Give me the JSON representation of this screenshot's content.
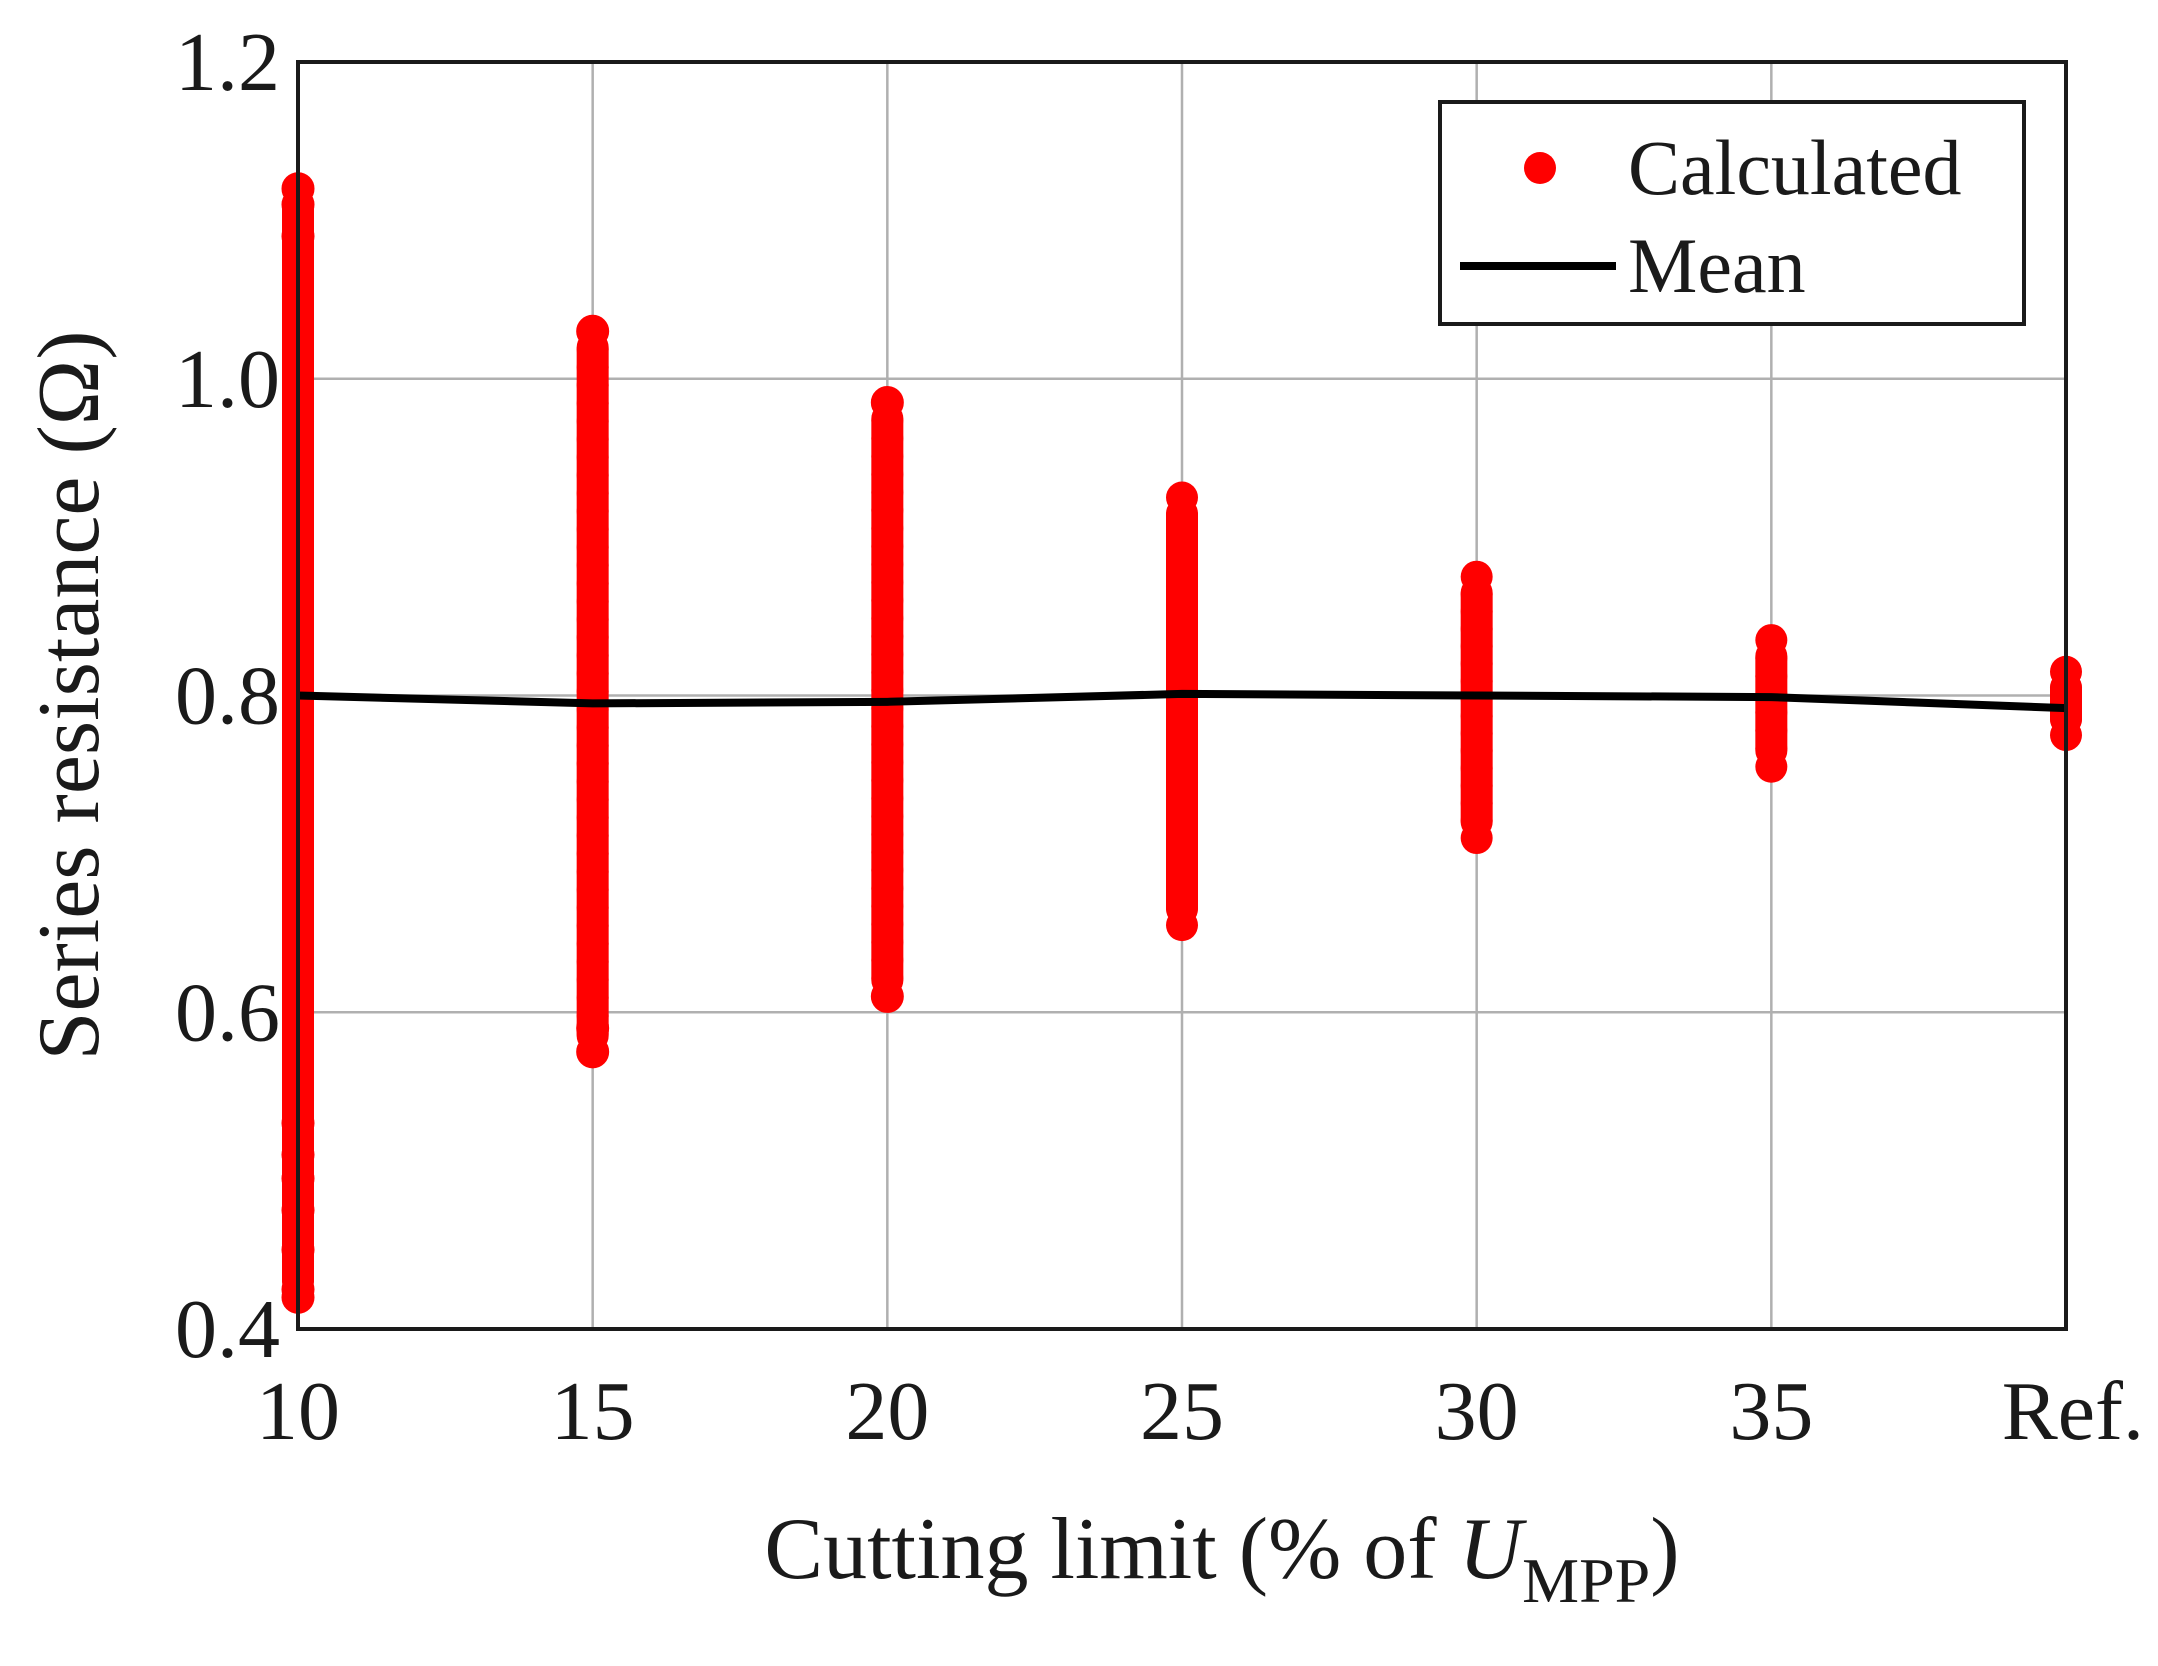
{
  "chart_data": {
    "type": "scatter",
    "xlabel_main": "Cutting limit (% of ",
    "xlabel_var": "U",
    "xlabel_sub": "MPP",
    "xlabel_close": ")",
    "ylabel": "Series resistance (Ω)",
    "ylim": [
      0.4,
      1.2
    ],
    "yticks": [
      "0.4",
      "0.6",
      "0.8",
      "1.0",
      "1.2"
    ],
    "ytick_values": [
      0.4,
      0.6,
      0.8,
      1.0,
      1.2
    ],
    "categories": [
      "10",
      "15",
      "20",
      "25",
      "30",
      "35",
      "Ref."
    ],
    "grid": true,
    "legend_position": "top-right",
    "colors": {
      "calculated": "#ff0000",
      "mean": "#000000",
      "grid": "#b0b0b0"
    },
    "series": [
      {
        "name": "Calculated",
        "kind": "scatter",
        "ranges": [
          {
            "category": "10",
            "min": 0.42,
            "max": 1.12
          },
          {
            "category": "15",
            "min": 0.575,
            "max": 1.03
          },
          {
            "category": "20",
            "min": 0.61,
            "max": 0.985
          },
          {
            "category": "25",
            "min": 0.655,
            "max": 0.925
          },
          {
            "category": "30",
            "min": 0.71,
            "max": 0.875
          },
          {
            "category": "35",
            "min": 0.755,
            "max": 0.835
          },
          {
            "category": "Ref.",
            "min": 0.775,
            "max": 0.815
          }
        ],
        "outliers": [
          {
            "category": "10",
            "y": 0.42
          },
          {
            "category": "10",
            "y": 0.425
          },
          {
            "category": "10",
            "y": 0.45
          },
          {
            "category": "10",
            "y": 0.475
          },
          {
            "category": "10",
            "y": 0.495
          },
          {
            "category": "10",
            "y": 0.51
          },
          {
            "category": "10",
            "y": 0.53
          },
          {
            "category": "10",
            "y": 1.09
          },
          {
            "category": "10",
            "y": 1.11
          },
          {
            "category": "10",
            "y": 1.12
          },
          {
            "category": "15",
            "y": 0.575
          },
          {
            "category": "15",
            "y": 0.59
          },
          {
            "category": "15",
            "y": 1.03
          },
          {
            "category": "20",
            "y": 0.61
          },
          {
            "category": "20",
            "y": 0.985
          }
        ]
      },
      {
        "name": "Mean",
        "kind": "line",
        "values": [
          0.8,
          0.795,
          0.796,
          0.801,
          0.8,
          0.799,
          0.792
        ]
      }
    ]
  }
}
